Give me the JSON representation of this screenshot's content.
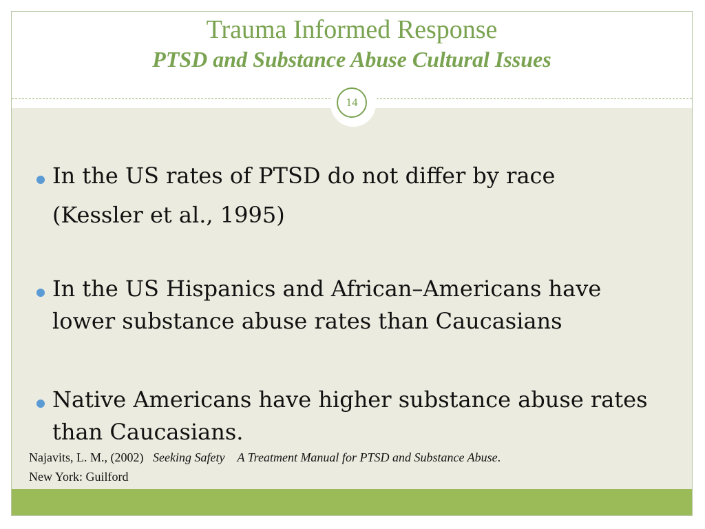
{
  "slide": {
    "title": "Trauma Informed Response",
    "subtitle": "PTSD and Substance Abuse Cultural Issues",
    "slide_number": "14",
    "bullets": [
      {
        "line1": "In the US rates of PTSD do not differ by race",
        "line2": "(Kessler et al., 1995)"
      },
      {
        "line1": "In the US Hispanics and African–Americans have",
        "line2": "lower substance abuse rates than Caucasians"
      },
      {
        "line1": "Native Americans have higher substance abuse rates",
        "line2": "than Caucasians."
      }
    ],
    "citation": {
      "author": "Najavits, L. M., (2002)",
      "title": "Seeking Safety",
      "subtitle": "A Treatment Manual for PTSD and Substance Abuse",
      "end": ".",
      "publisher": "New York: Guilford"
    }
  },
  "colors": {
    "accent_green": "#7aa351",
    "footer_green": "#9bbb59",
    "content_background": "#ecebdf",
    "bullet_blue": "#5b9bd5"
  }
}
